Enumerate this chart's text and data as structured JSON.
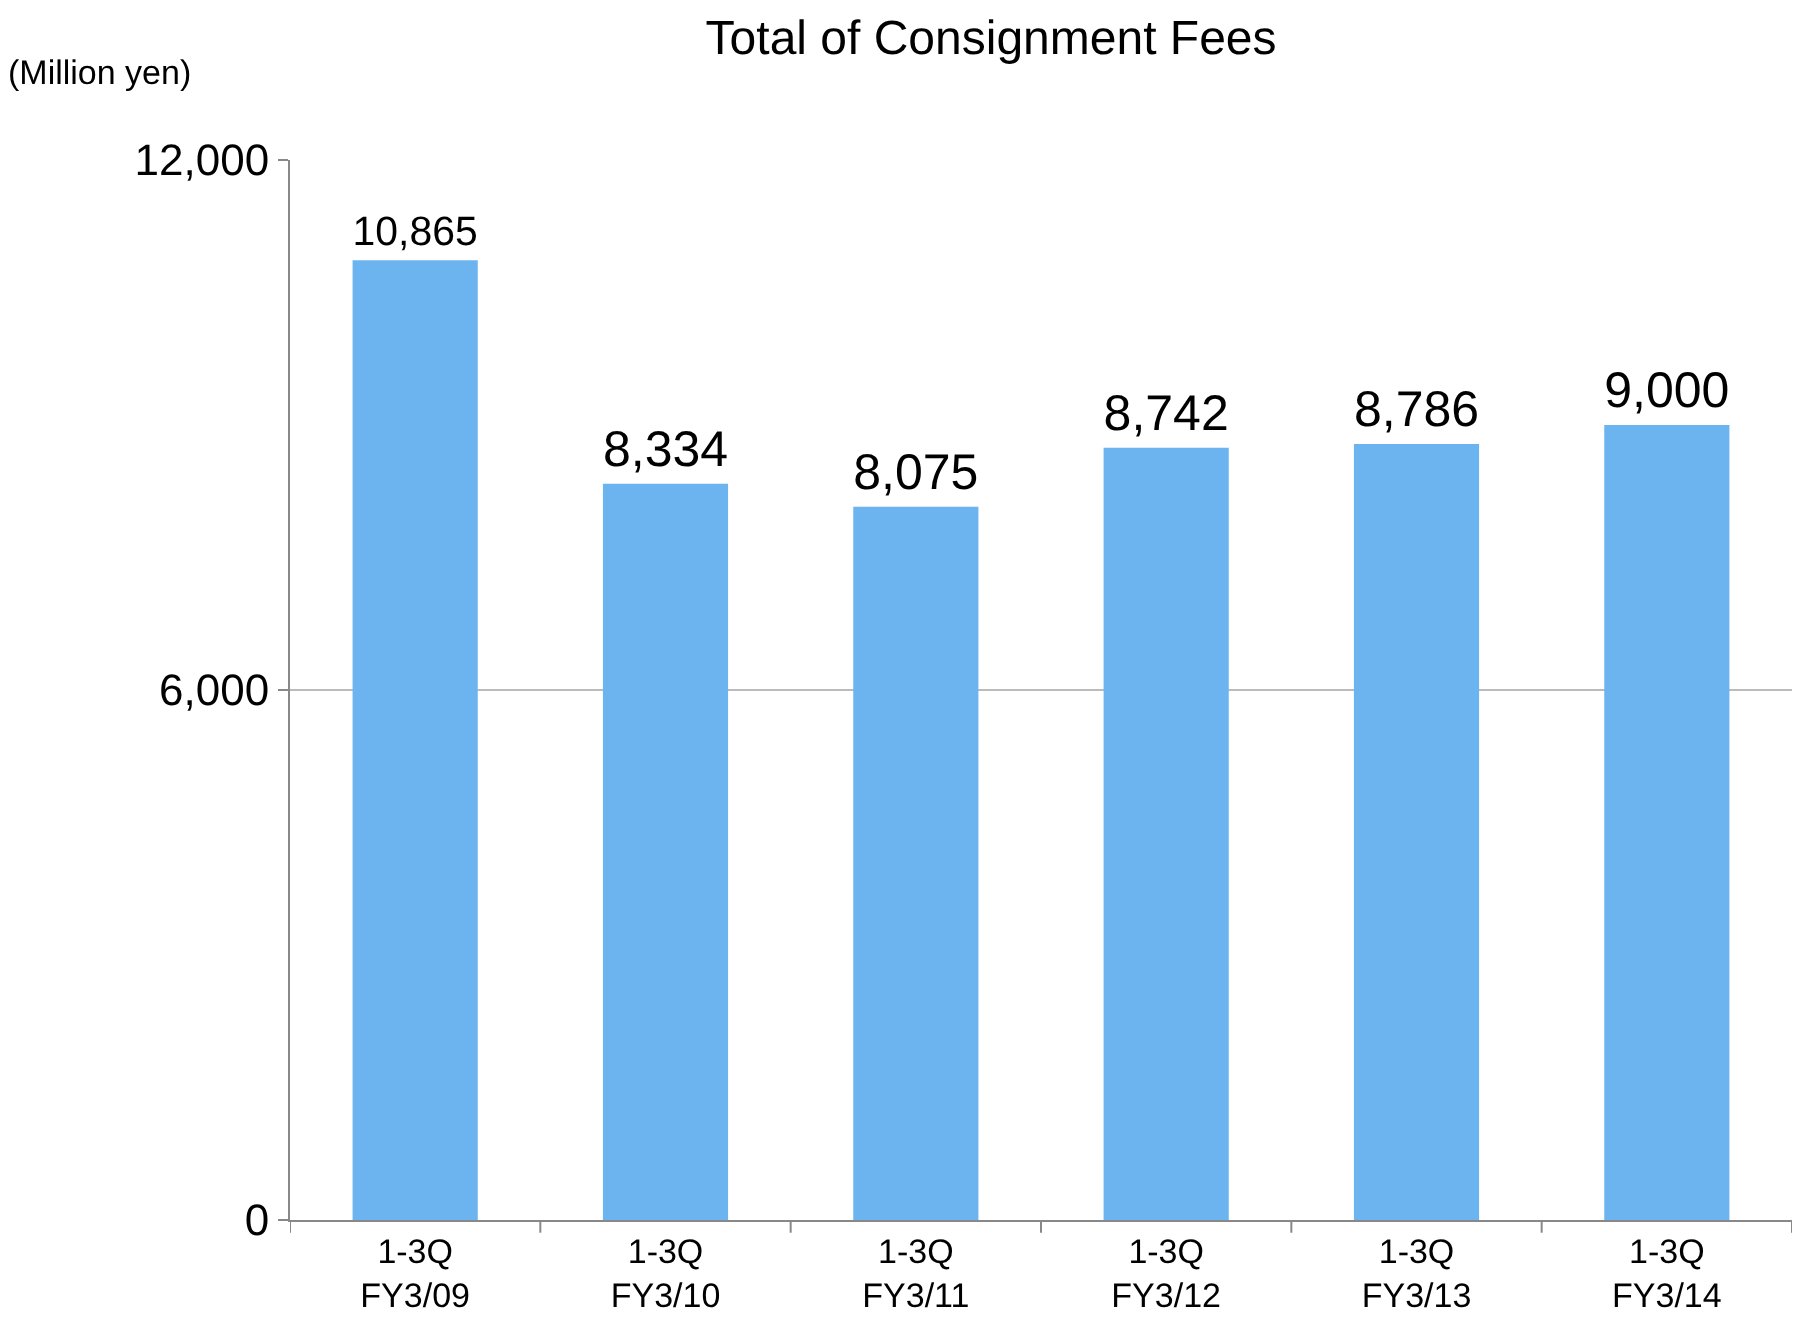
{
  "chart_data": {
    "type": "bar",
    "title": "Total of Consignment Fees",
    "ylabel": "(Million yen)",
    "categories": [
      "1-3Q\nFY3/09",
      "1-3Q\nFY3/10",
      "1-3Q\nFY3/11",
      "1-3Q\nFY3/12",
      "1-3Q\nFY3/13",
      "1-3Q\nFY3/14"
    ],
    "values": [
      10865,
      8334,
      8075,
      8742,
      8786,
      9000
    ],
    "color": "#6cb4f0",
    "ylim": [
      0,
      12000
    ],
    "yticks": [
      {
        "value": 0,
        "label": "0"
      },
      {
        "value": 6000,
        "label": "6,000"
      },
      {
        "value": 12000,
        "label": "12,000"
      }
    ],
    "value_labels": [
      "10,865",
      "8,334",
      "8,075",
      "8,742",
      "8,786",
      "9,000"
    ],
    "grid": "y"
  }
}
